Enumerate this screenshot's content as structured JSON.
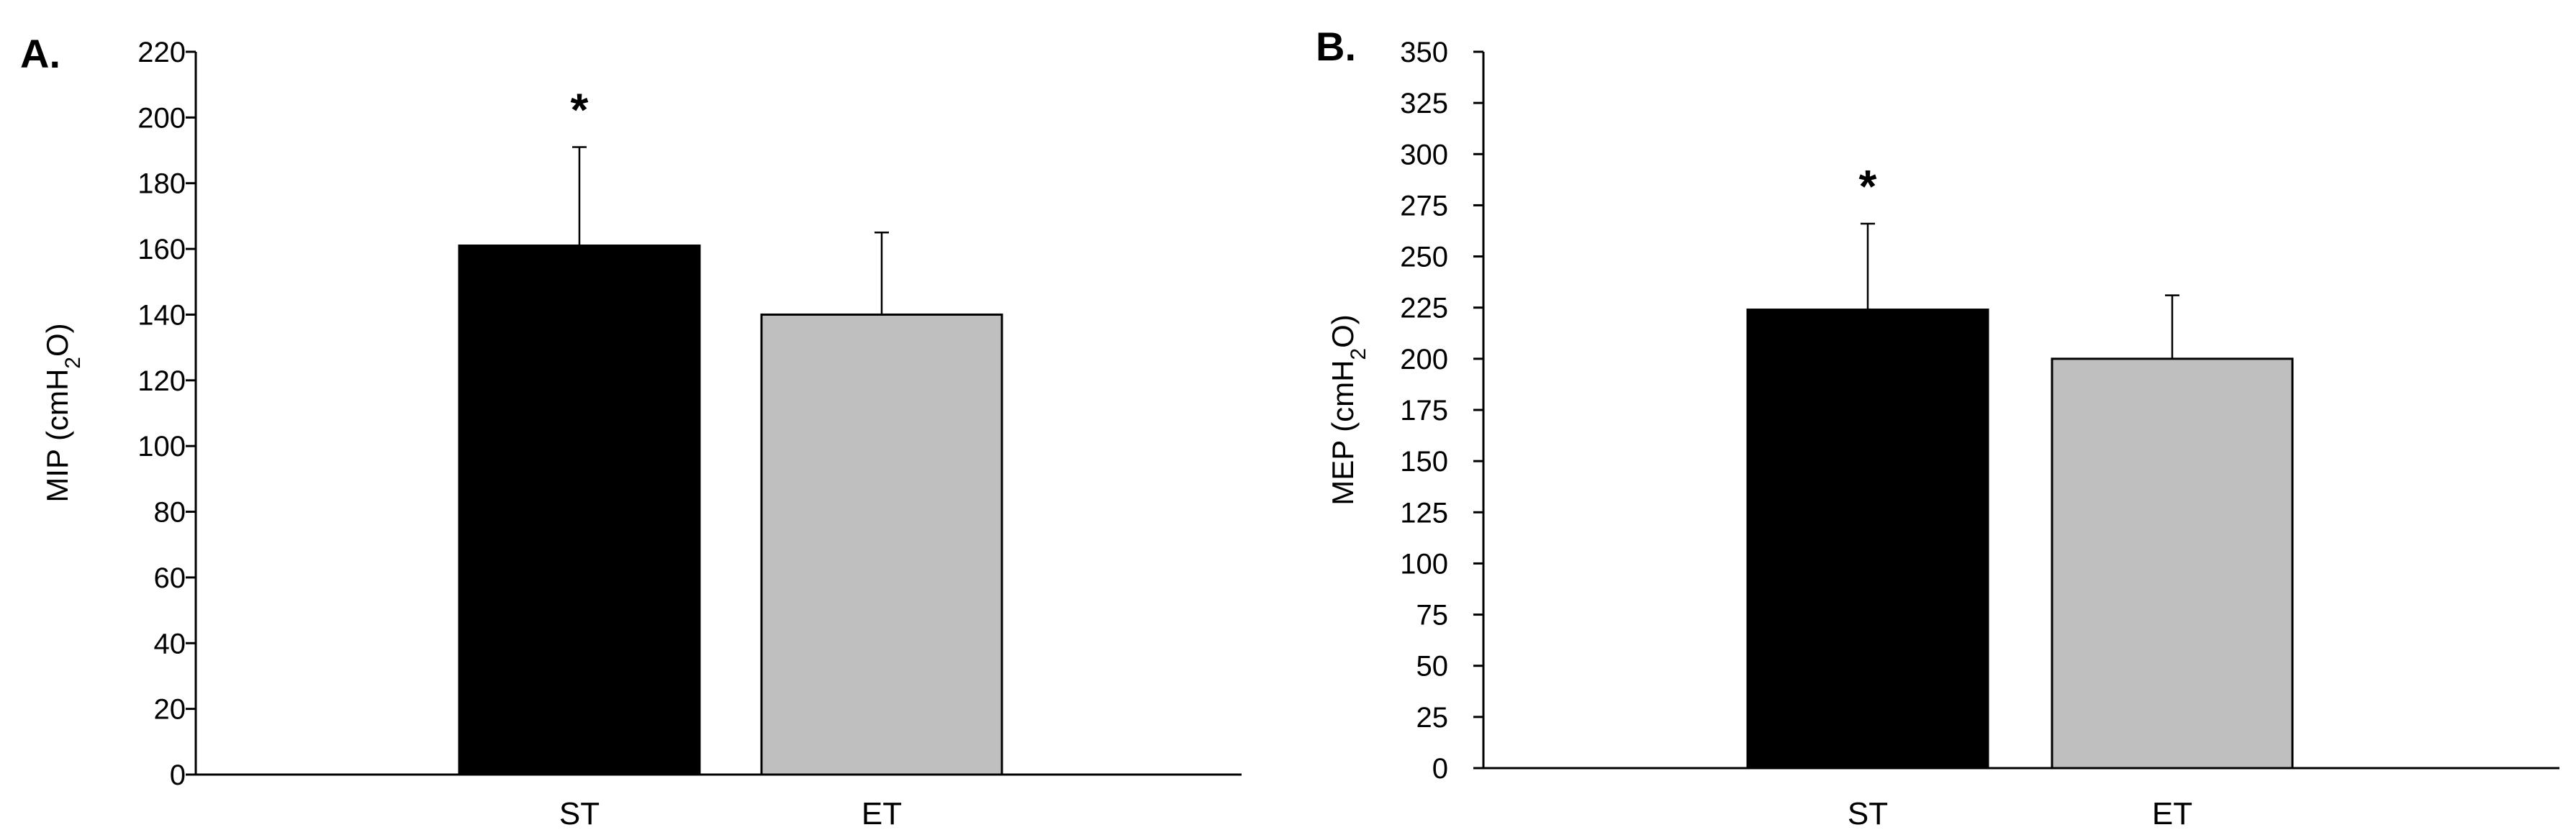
{
  "chart_data": [
    {
      "type": "bar",
      "panel_label": "A.",
      "ylabel": "MIP (cmH",
      "ylabel_sub": "2",
      "ylabel_end": "O)",
      "categories": [
        "ST",
        "ET"
      ],
      "values": [
        161,
        140
      ],
      "errors": [
        30,
        25
      ],
      "colors": [
        "#000000",
        "#bfbfbf"
      ],
      "significance": [
        "*",
        ""
      ],
      "ylim": [
        0,
        220
      ],
      "yticks": [
        0,
        20,
        40,
        60,
        80,
        100,
        120,
        140,
        160,
        180,
        200,
        220
      ]
    },
    {
      "type": "bar",
      "panel_label": "B.",
      "ylabel": "MEP (cmH",
      "ylabel_sub": "2",
      "ylabel_end": "O)",
      "categories": [
        "ST",
        "ET"
      ],
      "values": [
        224,
        200
      ],
      "errors": [
        42,
        31
      ],
      "colors": [
        "#000000",
        "#bfbfbf"
      ],
      "significance": [
        "*",
        ""
      ],
      "ylim": [
        0,
        350
      ],
      "yticks": [
        0,
        25,
        50,
        75,
        100,
        125,
        150,
        175,
        200,
        225,
        250,
        275,
        300,
        325,
        350
      ]
    }
  ]
}
